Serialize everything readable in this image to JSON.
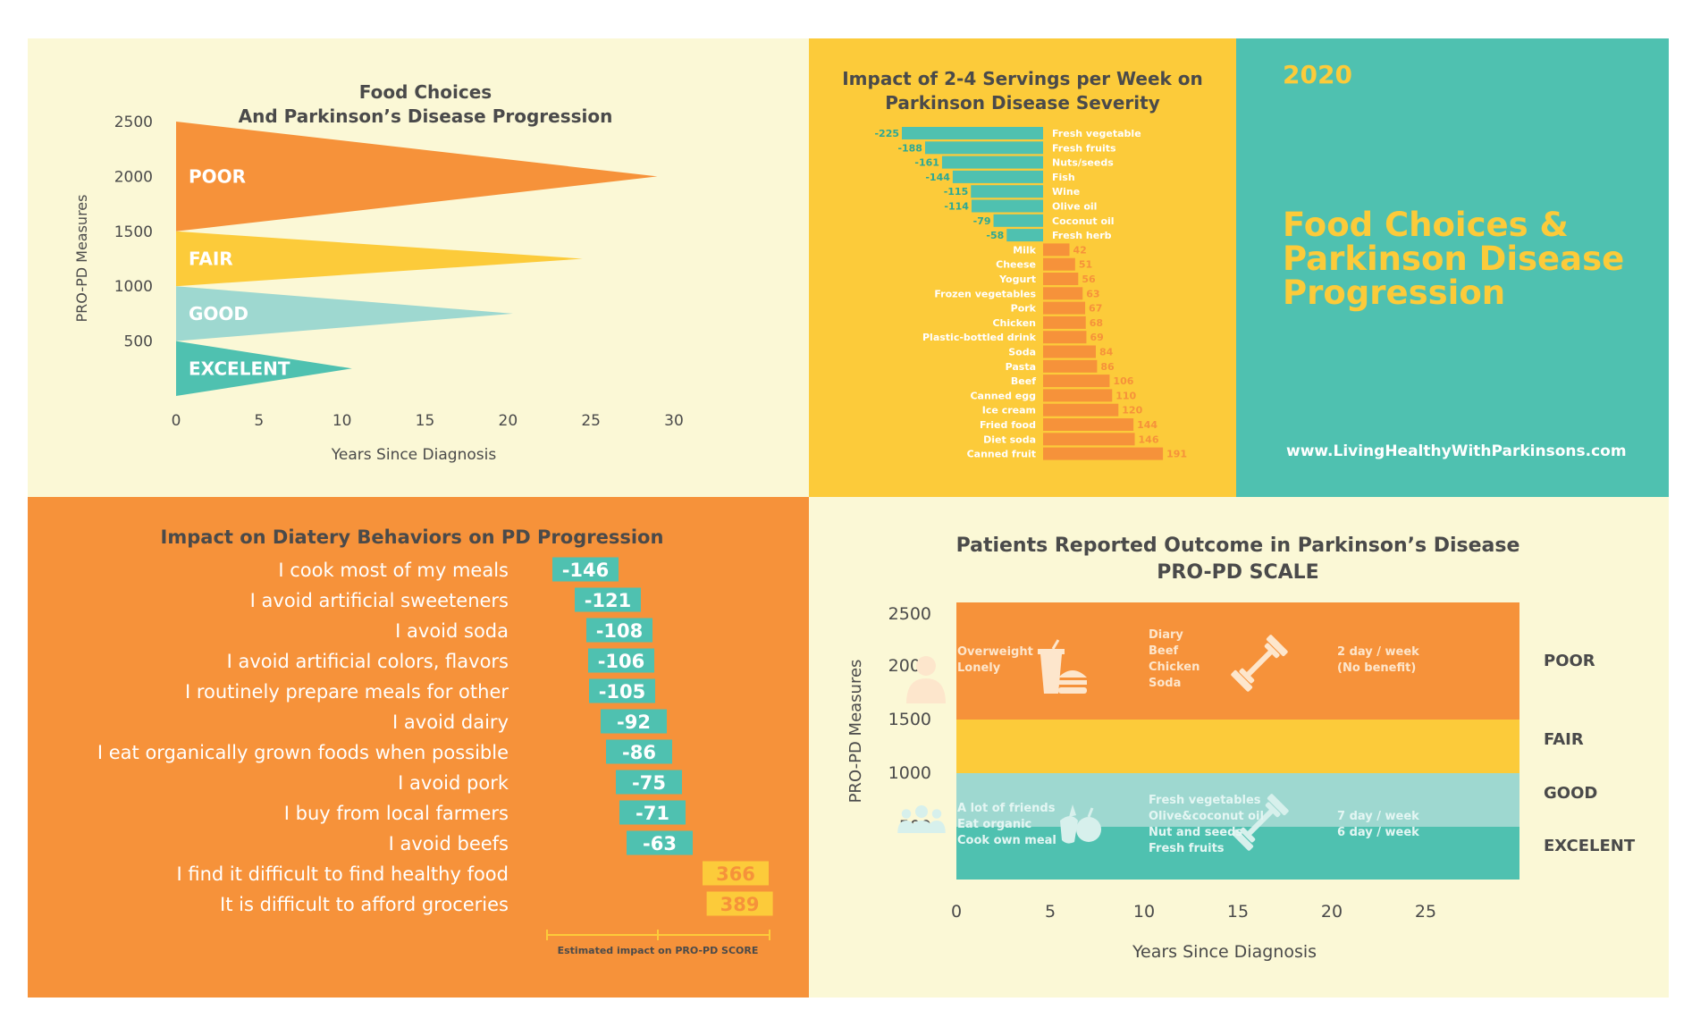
{
  "chart_data": [
    {
      "type": "area",
      "title": "Food Choices",
      "subtitle": "And Parkinson’s Disease Progression",
      "xlabel": "Years Since Diagnosis",
      "ylabel": "PRO-PD Measures",
      "x_ticks": [
        "0",
        "5",
        "10",
        "15",
        "20",
        "25",
        "30"
      ],
      "y_ticks": [
        "2500",
        "2000",
        "1500",
        "1000",
        "500"
      ],
      "xlim": [
        0,
        30
      ],
      "ylim": [
        0,
        2500
      ],
      "series": [
        {
          "name": "POOR",
          "y_range": [
            1500,
            2500
          ],
          "tip_x": 29,
          "color": "#F6923A"
        },
        {
          "name": "FAIR",
          "y_range": [
            1000,
            1500
          ],
          "tip_x": 24.5,
          "color": "#FCCB3A"
        },
        {
          "name": "GOOD",
          "y_range": [
            500,
            1000
          ],
          "tip_x": 20.3,
          "color": "#9ED8D0"
        },
        {
          "name": "EXCELENT",
          "y_range": [
            0,
            500
          ],
          "tip_x": 10.6,
          "color": "#4FC1B0"
        }
      ]
    },
    {
      "type": "bar",
      "title": "Impact of 2-4 Servings per Week on",
      "subtitle": "Parkinson Disease Severity",
      "xlim": [
        -225,
        191
      ],
      "categories": [
        "Fresh vegetable",
        "Fresh fruits",
        "Nuts/seeds",
        "Fish",
        "Wine",
        "Olive oil",
        "Coconut oil",
        "Fresh herb",
        "Milk",
        "Cheese",
        "Yogurt",
        "Frozen vegetables",
        "Pork",
        "Chicken",
        "Plastic-bottled drink",
        "Soda",
        "Pasta",
        "Beef",
        "Canned egg",
        "Ice cream",
        "Fried food",
        "Diet soda",
        "Canned fruit"
      ],
      "values": [
        -225,
        -188,
        -161,
        -144,
        -115,
        -114,
        -79,
        -58,
        42,
        51,
        56,
        63,
        67,
        68,
        69,
        84,
        86,
        106,
        110,
        120,
        144,
        146,
        191
      ],
      "negative_color": "#4FC1B0",
      "positive_color": "#F6923A"
    },
    {
      "type": "bar",
      "title": "Impact on Diatery Behaviors on PD Progression",
      "xlabel": "Estimated impact on PRO-PD SCORE",
      "categories": [
        "I cook most of my meals",
        "I avoid artificial sweeteners",
        "I avoid soda",
        "I avoid artificial colors, flavors",
        "I routinely prepare meals for other",
        "I avoid dairy",
        "I eat organically grown foods when possible",
        "I avoid pork",
        "I buy from local farmers",
        "I avoid beefs",
        "I find it difficult to find healthy food",
        "It is difficult to afford groceries"
      ],
      "values": [
        -146,
        -121,
        -108,
        -106,
        -105,
        -92,
        -86,
        -75,
        -71,
        -63,
        366,
        389
      ],
      "value_labels": [
        "-146",
        "-121",
        "-108",
        "-106",
        "-105",
        "-92",
        "-86",
        "-75",
        "-71",
        "-63",
        "366",
        "389"
      ],
      "negative_color": "#4FC1B0",
      "positive_color": "#FCCB3A"
    },
    {
      "type": "area",
      "title": "Patients Reported Outcome in Parkinson’s Disease",
      "subtitle": "PRO-PD SCALE",
      "xlabel": "Years Since Diagnosis",
      "ylabel": "PRO-PD Measures",
      "x_ticks": [
        "0",
        "5",
        "10",
        "15",
        "20",
        "25"
      ],
      "y_ticks": [
        "2500",
        "2000",
        "1500",
        "1000",
        "500"
      ],
      "xlim": [
        0,
        30
      ],
      "ylim": [
        0,
        2500
      ],
      "bands": [
        {
          "name": "POOR",
          "y_range": [
            1500,
            2600
          ],
          "color": "#F6923A"
        },
        {
          "name": "FAIR",
          "y_range": [
            1000,
            1500
          ],
          "color": "#FCCB3A"
        },
        {
          "name": "GOOD",
          "y_range": [
            500,
            1000
          ],
          "color": "#9ED8D0"
        },
        {
          "name": "EXCELENT",
          "y_range": [
            0,
            500
          ],
          "color": "#4FC1B0"
        }
      ],
      "poor_notes": {
        "person": [
          "Overweight",
          "Lonely"
        ],
        "food": [
          "Diary",
          "Beef",
          "Chicken",
          "Soda"
        ],
        "exercise": [
          "2 day / week",
          "(No benefit)"
        ]
      },
      "good_notes": {
        "people": [
          "A lot of friends",
          "Eat organic",
          "Cook own meal"
        ],
        "food": [
          "Fresh vegetables",
          "Olive&coconut oil",
          "Nut and seeds",
          "Fresh fruits"
        ],
        "exercise": [
          "7 day / week",
          "6 day / week"
        ]
      },
      "icons": [
        "person-icon",
        "fast-food-icon",
        "dumbbell-icon",
        "people-icon",
        "fruit-icon",
        "dumbbell-icon"
      ]
    }
  ],
  "banner": {
    "year": "2020",
    "title": "Food Choices & Parkinson Disease Progression",
    "url": "www.LivingHealthyWithParkinsons.com"
  }
}
